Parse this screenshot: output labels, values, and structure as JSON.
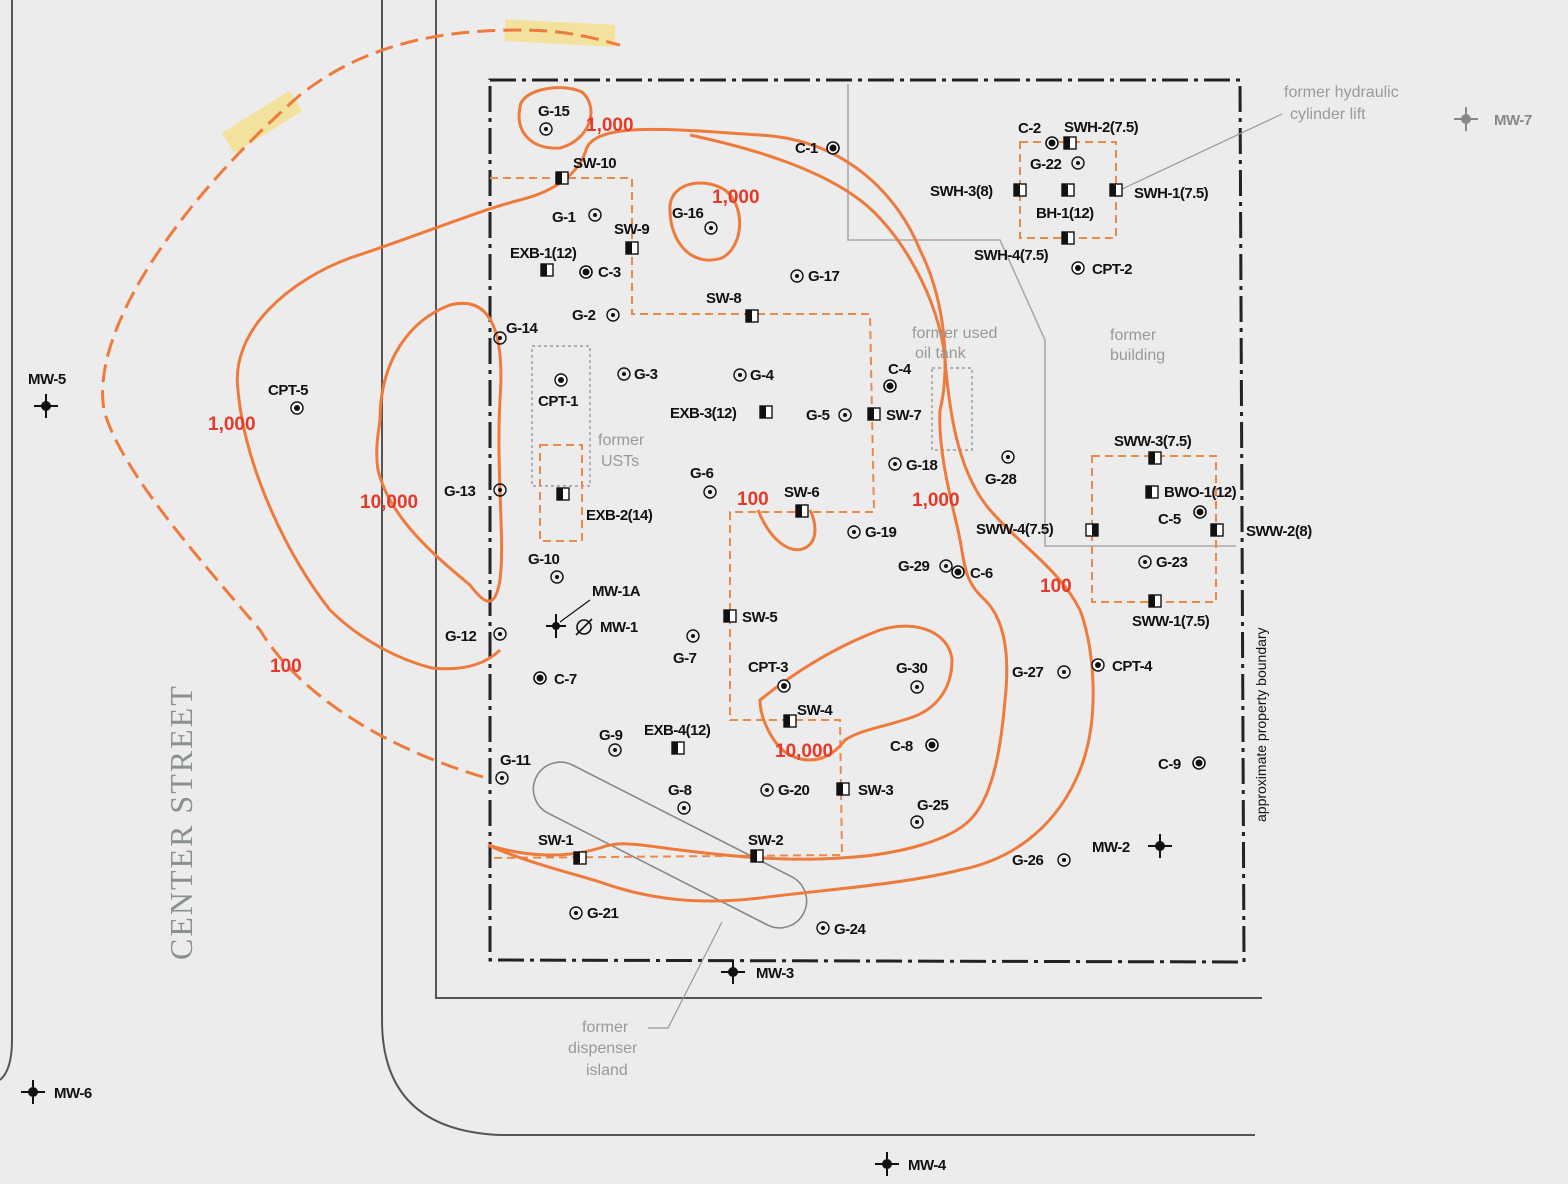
{
  "colors": {
    "contour": "#ee7a3c",
    "contour_label": "#e53a2a",
    "dashed_excavation": "#e88a4a",
    "boundary": "#222222",
    "road": "#555555",
    "faint_feature": "#9a9a9a",
    "highlight": "#f4e08a"
  },
  "street_name": "CENTER STREET",
  "property_boundary_label": "approximate property boundary",
  "features": {
    "hydraulic_lift": [
      "former hydraulic",
      "cylinder lift"
    ],
    "used_oil_tank": [
      "former used",
      "oil tank"
    ],
    "building": [
      "former",
      "building"
    ],
    "usts": [
      "former",
      "USTs"
    ],
    "dispenser_island": [
      "former",
      "dispenser",
      "island"
    ]
  },
  "contour_labels": [
    "1,000",
    "1,000",
    "1,000",
    "10,000",
    "100",
    "100",
    "1,000",
    "100",
    "10,000"
  ],
  "monitoring_wells": [
    "MW-1A",
    "MW-1",
    "MW-2",
    "MW-3",
    "MW-4",
    "MW-5",
    "MW-6",
    "MW-7"
  ],
  "soil_gas_points": [
    "G-1",
    "G-2",
    "G-3",
    "G-4",
    "G-5",
    "G-6",
    "G-7",
    "G-8",
    "G-9",
    "G-10",
    "G-11",
    "G-12",
    "G-13",
    "G-14",
    "G-15",
    "G-16",
    "G-17",
    "G-18",
    "G-19",
    "G-20",
    "G-21",
    "G-22",
    "G-23",
    "G-24",
    "G-25",
    "G-26",
    "G-27",
    "G-28",
    "G-29",
    "G-30"
  ],
  "cpt_points": [
    "CPT-1",
    "CPT-2",
    "CPT-3",
    "CPT-4",
    "CPT-5"
  ],
  "borings": [
    "C-1",
    "C-2",
    "C-3",
    "C-4",
    "C-5",
    "C-6",
    "C-7",
    "C-8",
    "C-9"
  ],
  "excavation_samples": [
    "SW-1",
    "SW-2",
    "SW-3",
    "SW-4",
    "SW-5",
    "SW-6",
    "SW-7",
    "SW-8",
    "SW-9",
    "SW-10",
    "EXB-1(12)",
    "EXB-2(14)",
    "EXB-3(12)",
    "EXB-4(12)"
  ],
  "hydraulic_samples": [
    "SWH-1(7.5)",
    "SWH-2(7.5)",
    "SWH-3(8)",
    "SWH-4(7.5)",
    "BH-1(12)"
  ],
  "waste_oil_samples": [
    "SWW-1(7.5)",
    "SWW-2(8)",
    "SWW-3(7.5)",
    "SWW-4(7.5)",
    "BWO-1(12)"
  ]
}
